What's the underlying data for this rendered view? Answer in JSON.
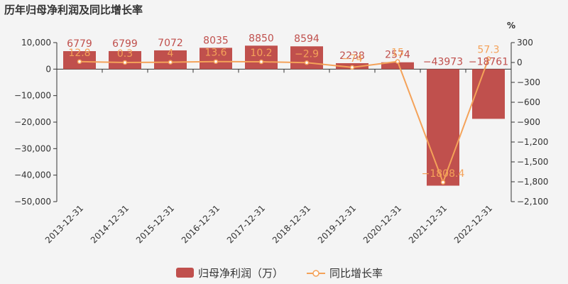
{
  "chart_data": {
    "type": "bar",
    "title": "历年归母净利润及同比增长率",
    "categories": [
      "2013-12-31",
      "2014-12-31",
      "2015-12-31",
      "2016-12-31",
      "2017-12-31",
      "2018-12-31",
      "2019-12-31",
      "2020-12-31",
      "2021-12-31",
      "2022-12-31"
    ],
    "series": [
      {
        "name": "归母净利润（万）",
        "type": "bar",
        "axis": "left",
        "values": [
          6779,
          6799,
          7072,
          8035,
          8850,
          8594,
          2238,
          2574,
          -43973,
          -18761
        ],
        "labels": [
          "6779",
          "6799",
          "7072",
          "8035",
          "8850",
          "8594",
          "2238",
          "2574",
          "−43973",
          "−18761"
        ]
      },
      {
        "name": "同比增长率",
        "type": "line",
        "axis": "right",
        "values": [
          12.8,
          0.3,
          4,
          13.6,
          10.2,
          -2.9,
          -74,
          15,
          -1808.4,
          57.3
        ],
        "labels": [
          "12.8",
          "0.3",
          "4",
          "13.6",
          "10.2",
          "−2.9",
          "−74",
          "15",
          "−1808.4",
          "57.3"
        ]
      }
    ],
    "y_left": {
      "range": [
        -50000,
        10000
      ],
      "ticks": [
        10000,
        0,
        -10000,
        -20000,
        -30000,
        -40000,
        -50000
      ],
      "tick_labels": [
        "10,000",
        "0",
        "−10,000",
        "−20,000",
        "−30,000",
        "−40,000",
        "−50,000"
      ]
    },
    "y_right": {
      "unit": "%",
      "range": [
        -2100,
        300
      ],
      "ticks": [
        300,
        0,
        -300,
        -600,
        -900,
        -1200,
        -1500,
        -1800,
        -2100
      ],
      "tick_labels": [
        "300",
        "0",
        "−300",
        "−600",
        "−900",
        "−1,200",
        "−1,500",
        "−1,800",
        "−2,100"
      ]
    },
    "legend": [
      "归母净利润（万）",
      "同比增长率"
    ],
    "legend_position": "bottom-center",
    "grid": false,
    "colors": {
      "bar": "#c0504d",
      "bar_label": "#c0504d",
      "line": "#f4a259",
      "line_label": "#f4a259",
      "axis": "#333333",
      "background": "#f4f4f4"
    }
  }
}
